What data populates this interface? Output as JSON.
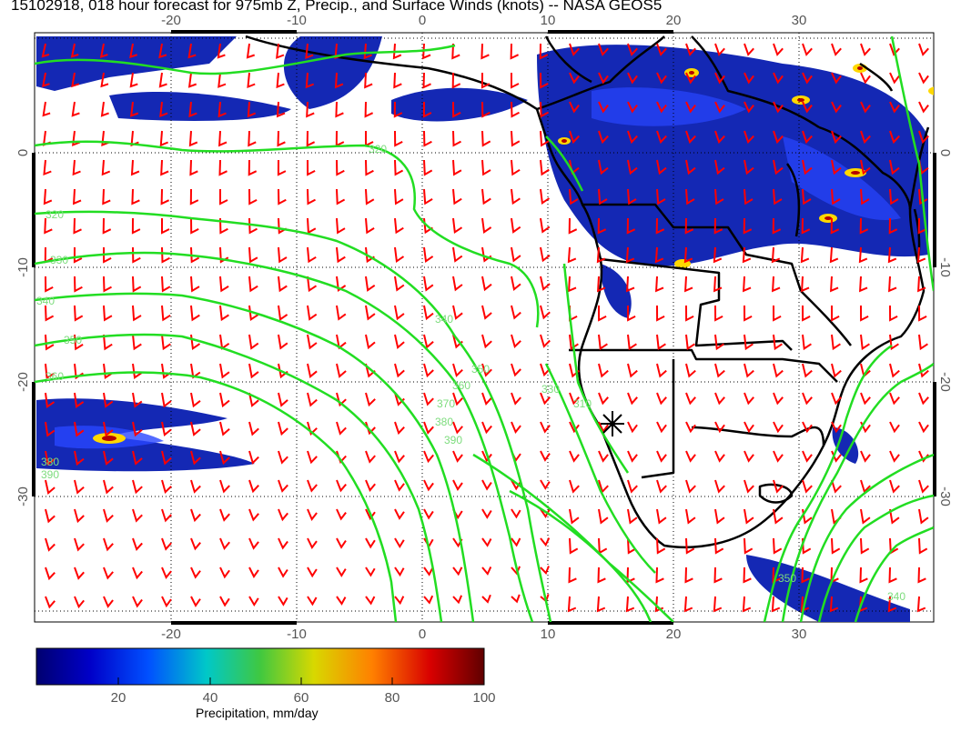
{
  "title": "15102918, 018 hour forecast for 975mb Z, Precip., and Surface Winds (knots) -- NASA GEOS5",
  "axes": {
    "lon_ticks": [
      "-20",
      "-10",
      "0",
      "10",
      "20",
      "30"
    ],
    "lat_ticks": [
      "0",
      "-10",
      "-20",
      "-30"
    ],
    "lon_range": [
      -30,
      40
    ],
    "lat_range": [
      -40,
      10
    ]
  },
  "contours": {
    "color": "#22dd22",
    "labels": [
      "320",
      "320",
      "330",
      "340",
      "350",
      "360",
      "380",
      "390",
      "340",
      "350",
      "360",
      "370",
      "380",
      "390",
      "330",
      "310",
      "350",
      "340"
    ]
  },
  "wind_barbs": {
    "color": "#ff0000"
  },
  "precip": {
    "colors": [
      "#0a0a8c",
      "#1e3cff",
      "#ffe600",
      "#c80000"
    ]
  },
  "colorbar": {
    "label": "Precipitation, mm/day",
    "ticks": [
      "20",
      "40",
      "60",
      "80",
      "100"
    ],
    "range": [
      0,
      100
    ]
  },
  "marker": {
    "symbol": "station-star"
  }
}
